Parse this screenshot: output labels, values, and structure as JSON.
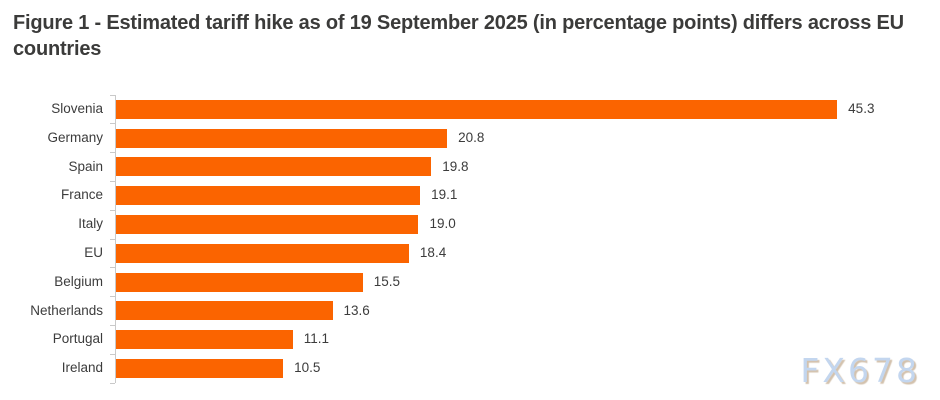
{
  "title": "Figure 1 - Estimated tariff hike as of 19 September 2025 (in percentage points) differs across EU countries",
  "watermark": "FX678",
  "colors": {
    "bar": "#fb6400",
    "title_text": "#3b3b3a",
    "label_text": "#3c3c3c",
    "axis": "#c9c9c9",
    "watermark_fill": "#c3d6ef",
    "watermark_shadow": "#d3c2ae"
  },
  "chart_data": {
    "type": "bar",
    "orientation": "horizontal",
    "title": "Figure 1 - Estimated tariff hike as of 19 September 2025 (in percentage points) differs across EU countries",
    "categories": [
      "Slovenia",
      "Germany",
      "Spain",
      "France",
      "Italy",
      "EU",
      "Belgium",
      "Netherlands",
      "Portugal",
      "Ireland"
    ],
    "values": [
      45.3,
      20.8,
      19.8,
      19.1,
      19.0,
      18.4,
      15.5,
      13.6,
      11.1,
      10.5
    ],
    "value_labels": [
      "45.3",
      "20.8",
      "19.8",
      "19.1",
      "19.0",
      "18.4",
      "15.5",
      "13.6",
      "11.1",
      "10.5"
    ],
    "xlabel": "",
    "ylabel": "",
    "xlim": [
      0,
      50
    ],
    "grid": false,
    "legend": false,
    "data_labels": true,
    "bar_color": "#fb6400"
  }
}
